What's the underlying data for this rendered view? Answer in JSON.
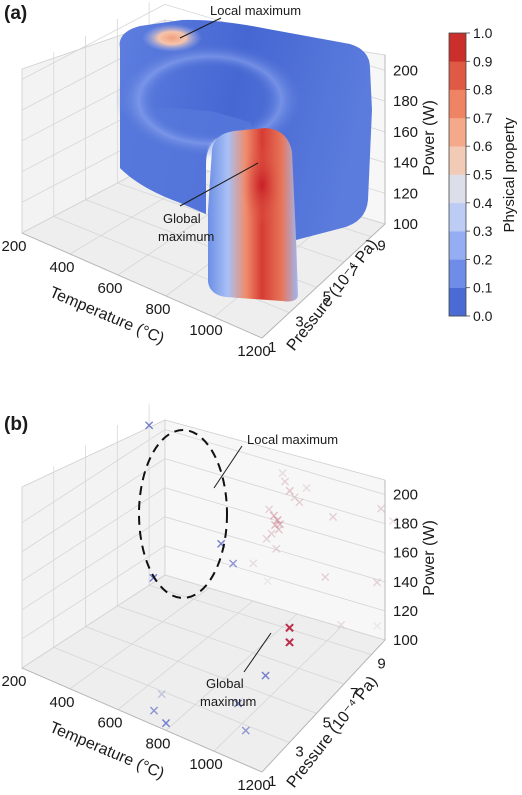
{
  "panels": [
    {
      "label": "(a)",
      "annotations": {
        "local": "Local maximum",
        "global_line1": "Global",
        "global_line2": "maximum"
      }
    },
    {
      "label": "(b)",
      "annotations": {
        "local": "Local maximum",
        "global_line1": "Global",
        "global_line2": "maximum"
      }
    }
  ],
  "colorbar": {
    "title": "Physical property",
    "ticks": [
      "0.0",
      "0.1",
      "0.2",
      "0.3",
      "0.4",
      "0.5",
      "0.6",
      "0.7",
      "0.8",
      "0.9",
      "1.0"
    ],
    "colors": [
      "#4a6bd4",
      "#6d8de8",
      "#95adf2",
      "#bcccf5",
      "#dcdfea",
      "#f2cbb6",
      "#f4a98a",
      "#ee8464",
      "#de5a44",
      "#cb2f2c"
    ]
  },
  "chart_data": [
    {
      "type": "scatter",
      "subtype": "3d-volume",
      "xlabel": "Temperature (°C)",
      "ylabel": "Pressure (10⁻⁴ Pa)",
      "zlabel": "Power (W)",
      "xlim": [
        200,
        1200
      ],
      "ylim": [
        1,
        10
      ],
      "zlim": [
        100,
        210
      ],
      "x_ticks": [
        "200",
        "400",
        "600",
        "800",
        "1000",
        "1200"
      ],
      "y_ticks": [
        "1",
        "3",
        "5",
        "7",
        "9"
      ],
      "z_ticks": [
        "100",
        "120",
        "140",
        "160",
        "180",
        "200"
      ],
      "color_scale": "coolwarm",
      "color_range": [
        0.0,
        1.0
      ],
      "regions": [
        {
          "shape": "upper-slab",
          "temperature": [
            200,
            1200
          ],
          "pressure": [
            6,
            10
          ],
          "power": [
            100,
            210
          ],
          "dominant_value": 0.1
        },
        {
          "shape": "lower-column",
          "temperature": [
            650,
            1200
          ],
          "pressure": [
            1,
            6
          ],
          "power": [
            100,
            160
          ],
          "dominant_value": 0.15
        }
      ],
      "maxima": [
        {
          "name": "Local maximum",
          "temperature": 500,
          "pressure": 9,
          "power": 205,
          "value": 0.65
        },
        {
          "name": "Global maximum",
          "temperature": 1000,
          "pressure": 5,
          "power": 155,
          "value": 1.0
        }
      ]
    },
    {
      "type": "scatter",
      "subtype": "3d",
      "marker": "x",
      "xlabel": "Temperature (°C)",
      "ylabel": "Pressure (10⁻⁴ Pa)",
      "zlabel": "Power (W)",
      "xlim": [
        200,
        1200
      ],
      "ylim": [
        1,
        10
      ],
      "zlim": [
        100,
        210
      ],
      "x_ticks": [
        "200",
        "400",
        "600",
        "800",
        "1000",
        "1200"
      ],
      "y_ticks": [
        "1",
        "3",
        "5",
        "7",
        "9"
      ],
      "z_ticks": [
        "100",
        "120",
        "140",
        "160",
        "180",
        "200"
      ],
      "color_scale": "coolwarm",
      "color_range": [
        0.0,
        1.0
      ],
      "points": [
        {
          "temperature": 200,
          "pressure": 9,
          "power": 210,
          "value": 0.1
        },
        {
          "temperature": 350,
          "pressure": 7,
          "power": 130,
          "value": 0.1
        },
        {
          "temperature": 500,
          "pressure": 9,
          "power": 150,
          "value": 0.1
        },
        {
          "temperature": 550,
          "pressure": 9,
          "power": 140,
          "value": 0.2
        },
        {
          "temperature": 750,
          "pressure": 1,
          "power": 110,
          "value": 0.2
        },
        {
          "temperature": 800,
          "pressure": 1,
          "power": 105,
          "value": 0.1
        },
        {
          "temperature": 650,
          "pressure": 3,
          "power": 100,
          "value": 0.3
        },
        {
          "temperature": 950,
          "pressure": 5,
          "power": 120,
          "value": 0.1
        },
        {
          "temperature": 1100,
          "pressure": 1,
          "power": 140,
          "value": 0.1
        },
        {
          "temperature": 1000,
          "pressure": 3,
          "power": 100,
          "value": 0.2
        },
        {
          "temperature": 1050,
          "pressure": 5,
          "power": 160,
          "value": 0.9
        },
        {
          "temperature": 1050,
          "pressure": 5,
          "power": 150,
          "value": 0.9
        },
        {
          "temperature": 700,
          "pressure": 10,
          "power": 200,
          "value": 0.6
        },
        {
          "temperature": 720,
          "pressure": 10,
          "power": 195,
          "value": 0.65
        },
        {
          "temperature": 740,
          "pressure": 10,
          "power": 192,
          "value": 0.6
        },
        {
          "temperature": 760,
          "pressure": 10,
          "power": 190,
          "value": 0.6
        },
        {
          "temperature": 700,
          "pressure": 9,
          "power": 188,
          "value": 0.6
        },
        {
          "temperature": 720,
          "pressure": 9,
          "power": 185,
          "value": 0.7
        },
        {
          "temperature": 735,
          "pressure": 9,
          "power": 183,
          "value": 0.75
        },
        {
          "temperature": 745,
          "pressure": 9,
          "power": 181,
          "value": 0.7
        },
        {
          "temperature": 725,
          "pressure": 9,
          "power": 179,
          "value": 0.7
        },
        {
          "temperature": 740,
          "pressure": 9,
          "power": 177,
          "value": 0.65
        },
        {
          "temperature": 710,
          "pressure": 9,
          "power": 172,
          "value": 0.6
        },
        {
          "temperature": 690,
          "pressure": 9,
          "power": 167,
          "value": 0.6
        },
        {
          "temperature": 730,
          "pressure": 9,
          "power": 163,
          "value": 0.6
        },
        {
          "temperature": 700,
          "pressure": 8,
          "power": 158,
          "value": 0.55
        },
        {
          "temperature": 760,
          "pressure": 8,
          "power": 150,
          "value": 0.5
        },
        {
          "temperature": 690,
          "pressure": 10,
          "power": 205,
          "value": 0.55
        },
        {
          "temperature": 790,
          "pressure": 10,
          "power": 202,
          "value": 0.55
        },
        {
          "temperature": 900,
          "pressure": 10,
          "power": 190,
          "value": 0.6
        },
        {
          "temperature": 1100,
          "pressure": 10,
          "power": 210,
          "value": 0.6
        },
        {
          "temperature": 1150,
          "pressure": 10,
          "power": 205,
          "value": 0.55
        },
        {
          "temperature": 1150,
          "pressure": 9,
          "power": 170,
          "value": 0.6
        },
        {
          "temperature": 1150,
          "pressure": 9,
          "power": 140,
          "value": 0.5
        },
        {
          "temperature": 1000,
          "pressure": 8,
          "power": 170,
          "value": 0.6
        },
        {
          "temperature": 1000,
          "pressure": 3,
          "power": 120,
          "value": 0.55
        },
        {
          "temperature": 1000,
          "pressure": 9,
          "power": 130,
          "value": 0.55
        }
      ],
      "highlight_regions": [
        {
          "name": "Local maximum",
          "shape": "dashed-ellipse"
        }
      ],
      "maxima": [
        {
          "name": "Global maximum",
          "temperature": 1050,
          "pressure": 5,
          "power": 155,
          "value": 0.9
        }
      ]
    }
  ]
}
